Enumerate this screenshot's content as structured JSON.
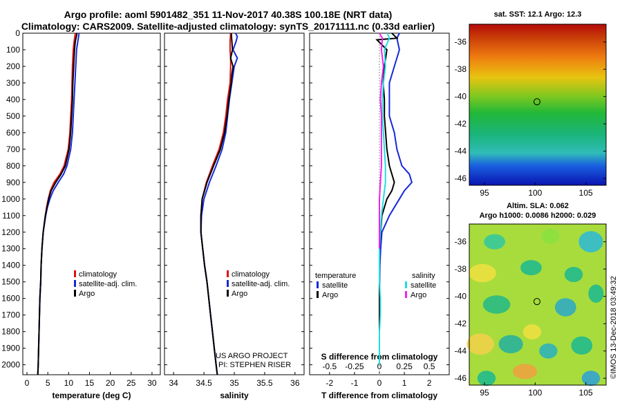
{
  "header": {
    "title_line1": "Argo profile: aoml 5901482_351 11-Nov-2017 40.38S 100.18E (NRT data)",
    "title_line2": "Climatology: CARS2009. Satellite-adjusted climatology: synTS_20171111.nc (0.33d earlier)"
  },
  "colors": {
    "climatology": "#e01010",
    "satellite": "#1428d8",
    "argo": "#000000",
    "sal_satellite": "#22dde0",
    "sal_argo": "#ee22ee"
  },
  "depth_axis": {
    "ticks": [
      "0",
      "100",
      "200",
      "300",
      "400",
      "500",
      "600",
      "700",
      "800",
      "900",
      "1000",
      "1100",
      "1200",
      "1300",
      "1400",
      "1500",
      "1600",
      "1700",
      "1800",
      "1900",
      "2000"
    ],
    "range": [
      0,
      2060
    ]
  },
  "chart_data": [
    {
      "type": "line",
      "name": "temperature profile",
      "xlabel": "temperature (deg C)",
      "ylabel": "depth",
      "xlim": [
        -1,
        32
      ],
      "ylim": [
        2060,
        0
      ],
      "xticks": [
        "0",
        "5",
        "10",
        "15",
        "20",
        "25",
        "30"
      ],
      "xtick_values": [
        0,
        5,
        10,
        15,
        20,
        25,
        30
      ],
      "legend": [
        "climatology",
        "satellite-adj. clim.",
        "Argo"
      ],
      "series": [
        {
          "name": "climatology",
          "depth": [
            0,
            50,
            100,
            200,
            300,
            400,
            500,
            600,
            700,
            800,
            850,
            900,
            950,
            1000,
            1050,
            1100,
            1200,
            1300,
            1400,
            1500,
            1600,
            1700,
            1800,
            1900,
            2000,
            2060
          ],
          "values": [
            11.6,
            11.3,
            11.1,
            10.9,
            10.8,
            10.7,
            10.5,
            10.3,
            9.9,
            8.9,
            7.9,
            6.5,
            5.6,
            5.1,
            4.7,
            4.4,
            3.9,
            3.6,
            3.4,
            3.3,
            3.1,
            3.0,
            2.9,
            2.8,
            2.7,
            2.6
          ]
        },
        {
          "name": "satellite-adj. clim.",
          "depth": [
            0,
            50,
            100,
            200,
            300,
            400,
            500,
            600,
            700,
            800,
            850,
            900,
            950,
            1000,
            1050,
            1100,
            1200,
            1300,
            1400,
            1500,
            1600,
            1700,
            1800,
            1900,
            2000,
            2060
          ],
          "values": [
            12.5,
            12.2,
            11.9,
            11.7,
            11.5,
            11.3,
            11.1,
            10.9,
            10.5,
            9.6,
            8.8,
            7.5,
            6.3,
            5.5,
            4.9,
            4.5,
            3.9,
            3.6,
            3.4,
            3.3,
            3.1,
            3.0,
            2.9,
            2.8,
            2.7,
            2.6
          ]
        },
        {
          "name": "Argo",
          "depth": [
            0,
            50,
            100,
            200,
            300,
            400,
            500,
            600,
            700,
            800,
            850,
            900,
            950,
            1000,
            1050,
            1100,
            1200,
            1300,
            1400,
            1500,
            1600,
            1700,
            1800,
            1900,
            2000,
            2060
          ],
          "values": [
            12.0,
            11.6,
            11.4,
            11.2,
            11.0,
            10.9,
            10.7,
            10.5,
            10.1,
            9.2,
            8.2,
            6.9,
            5.8,
            5.2,
            4.8,
            4.4,
            3.9,
            3.6,
            3.4,
            3.3,
            3.1,
            3.0,
            2.9,
            2.8,
            2.7,
            2.6
          ]
        }
      ]
    },
    {
      "type": "line",
      "name": "salinity profile",
      "xlabel": "salinity",
      "xlim": [
        33.85,
        36.15
      ],
      "ylim": [
        2060,
        0
      ],
      "xticks": [
        "34",
        "34.5",
        "35",
        "35.5",
        "36"
      ],
      "xtick_values": [
        34,
        34.5,
        35,
        35.5,
        36
      ],
      "legend": [
        "climatology",
        "satellite-adj. clim.",
        "Argo"
      ],
      "series": [
        {
          "name": "climatology",
          "depth": [
            0,
            50,
            100,
            150,
            200,
            300,
            400,
            500,
            600,
            700,
            800,
            900,
            1000,
            1100,
            1200,
            1300,
            1400,
            1500,
            1600,
            1700,
            1800,
            1900,
            2000,
            2060
          ],
          "values": [
            34.94,
            34.93,
            34.93,
            34.94,
            34.94,
            34.93,
            34.89,
            34.86,
            34.82,
            34.75,
            34.64,
            34.54,
            34.47,
            34.45,
            34.45,
            34.48,
            34.51,
            34.55,
            34.58,
            34.61,
            34.64,
            34.67,
            34.7,
            34.72
          ]
        },
        {
          "name": "satellite-adj. clim.",
          "depth": [
            0,
            20,
            50,
            100,
            150,
            200,
            300,
            400,
            500,
            600,
            700,
            800,
            900,
            1000,
            1100,
            1200,
            1300,
            1400,
            1500,
            1600,
            1700,
            1800,
            1900,
            2000,
            2060
          ],
          "values": [
            35.02,
            35.05,
            35.03,
            34.98,
            35.05,
            35.0,
            34.96,
            34.92,
            34.89,
            34.86,
            34.8,
            34.7,
            34.59,
            34.5,
            34.46,
            34.45,
            34.48,
            34.51,
            34.55,
            34.58,
            34.61,
            34.64,
            34.67,
            34.7,
            34.72
          ]
        },
        {
          "name": "Argo",
          "depth": [
            0,
            50,
            100,
            150,
            200,
            250,
            300,
            400,
            500,
            600,
            700,
            800,
            900,
            1000,
            1100,
            1200,
            1300,
            1400,
            1500,
            1600,
            1700,
            1800,
            1900,
            2000,
            2060
          ],
          "values": [
            34.95,
            34.96,
            34.97,
            34.94,
            34.98,
            34.96,
            34.95,
            34.91,
            34.88,
            34.84,
            34.77,
            34.66,
            34.55,
            34.47,
            34.45,
            34.45,
            34.48,
            34.51,
            34.55,
            34.58,
            34.61,
            34.64,
            34.67,
            34.7,
            34.72
          ]
        }
      ]
    },
    {
      "type": "line",
      "name": "difference from climatology",
      "xlabel": "T difference from climatology",
      "x2label": "S difference from climatology",
      "xlim": [
        -2.8,
        2.8
      ],
      "ylim": [
        2060,
        0
      ],
      "xticks": [
        "-2",
        "-1",
        "0",
        "1",
        "2"
      ],
      "xtick_values": [
        -2,
        -1,
        0,
        1,
        2
      ],
      "x2ticks": [
        "-0.5",
        "-0.25",
        "0",
        "0.25",
        "0.5"
      ],
      "x2tick_values": [
        -0.5,
        -0.25,
        0,
        0.25,
        0.5
      ],
      "legend": {
        "temperature": [
          "satellite",
          "Argo"
        ],
        "salinity": [
          "satellite",
          "Argo"
        ]
      },
      "series": [
        {
          "name": "temperature satellite",
          "depth": [
            0,
            30,
            100,
            200,
            300,
            400,
            500,
            600,
            700,
            800,
            850,
            900,
            950,
            1000,
            1050,
            1100,
            1200,
            1300,
            1400,
            1600,
            1800,
            2000
          ],
          "values": [
            0.8,
            0.7,
            0.8,
            0.6,
            0.4,
            0.4,
            0.4,
            0.6,
            0.7,
            0.9,
            1.2,
            1.3,
            1.0,
            0.8,
            0.6,
            0.4,
            0.1,
            0.05,
            0.02,
            0,
            0,
            0
          ]
        },
        {
          "name": "temperature Argo",
          "depth": [
            0,
            30,
            40,
            100,
            200,
            300,
            400,
            500,
            600,
            700,
            800,
            900,
            950,
            1000,
            1100,
            1200,
            1300,
            1400,
            1600,
            1800,
            2000
          ],
          "values": [
            0.5,
            0.7,
            -0.1,
            0.3,
            0.2,
            0.15,
            0.2,
            0.2,
            0.25,
            0.3,
            0.4,
            0.6,
            0.5,
            0.3,
            0.1,
            0.05,
            0,
            0,
            0,
            0,
            0
          ]
        },
        {
          "name": "salinity satellite",
          "depth": [
            0,
            30,
            100,
            200,
            300,
            400,
            500,
            600,
            700,
            800,
            900,
            1000,
            1100,
            1200,
            1300,
            1400,
            1500,
            1600,
            1700,
            1800,
            1900,
            2000
          ],
          "values": [
            0.08,
            0.1,
            0.05,
            0.06,
            0.04,
            0.03,
            0.03,
            0.04,
            0.05,
            0.06,
            0.06,
            0.04,
            0.02,
            0.01,
            0,
            0,
            0,
            0.01,
            0.01,
            0,
            0,
            0
          ]
        },
        {
          "name": "salinity Argo",
          "depth": [
            0,
            30,
            100,
            200,
            300,
            400,
            500,
            600,
            700,
            800,
            900,
            1000,
            1100,
            1200,
            1300
          ],
          "values": [
            0.0,
            0.03,
            0.02,
            0.04,
            0.02,
            0.01,
            0.02,
            0.02,
            0.02,
            0.02,
            0.01,
            0.0,
            0.0,
            0.0,
            0.0
          ]
        }
      ]
    },
    {
      "type": "heatmap",
      "name": "SST map",
      "title": "sat. SST: 12.1  Argo: 12.3",
      "xticks": [
        "95",
        "100",
        "105"
      ],
      "xtick_values": [
        95,
        100,
        105
      ],
      "yticks": [
        "-36",
        "-38",
        "-40",
        "-42",
        "-44",
        "-46"
      ],
      "ytick_values": [
        -36,
        -38,
        -40,
        -42,
        -44,
        -46
      ],
      "xlim": [
        93.5,
        107
      ],
      "ylim": [
        -46.5,
        -34.7
      ],
      "marker": {
        "lon": 100.18,
        "lat": -40.38
      }
    },
    {
      "type": "heatmap",
      "name": "SLA map",
      "title_line1": "Altim. SLA: 0.062",
      "title_line2": "Argo h1000: 0.0086 h2000: 0.029",
      "xticks": [
        "95",
        "100",
        "105"
      ],
      "xtick_values": [
        95,
        100,
        105
      ],
      "yticks": [
        "-36",
        "-38",
        "-40",
        "-42",
        "-44",
        "-46"
      ],
      "ytick_values": [
        -36,
        -38,
        -40,
        -42,
        -44,
        -46
      ],
      "xlim": [
        93.5,
        107
      ],
      "ylim": [
        -46.5,
        -34.7
      ],
      "marker": {
        "lon": 100.18,
        "lat": -40.38
      }
    }
  ],
  "legend_labels": {
    "climatology": "climatology",
    "satellite_adj": "satellite-adj. clim.",
    "argo": "Argo",
    "temperature": "temperature",
    "salinity": "salinity",
    "satellite": "satellite"
  },
  "signature": {
    "line1": "US ARGO PROJECT",
    "line2": "PI: STEPHEN RISER"
  },
  "watermark": "©IMOS 13-Dec-2018 03:49:32"
}
